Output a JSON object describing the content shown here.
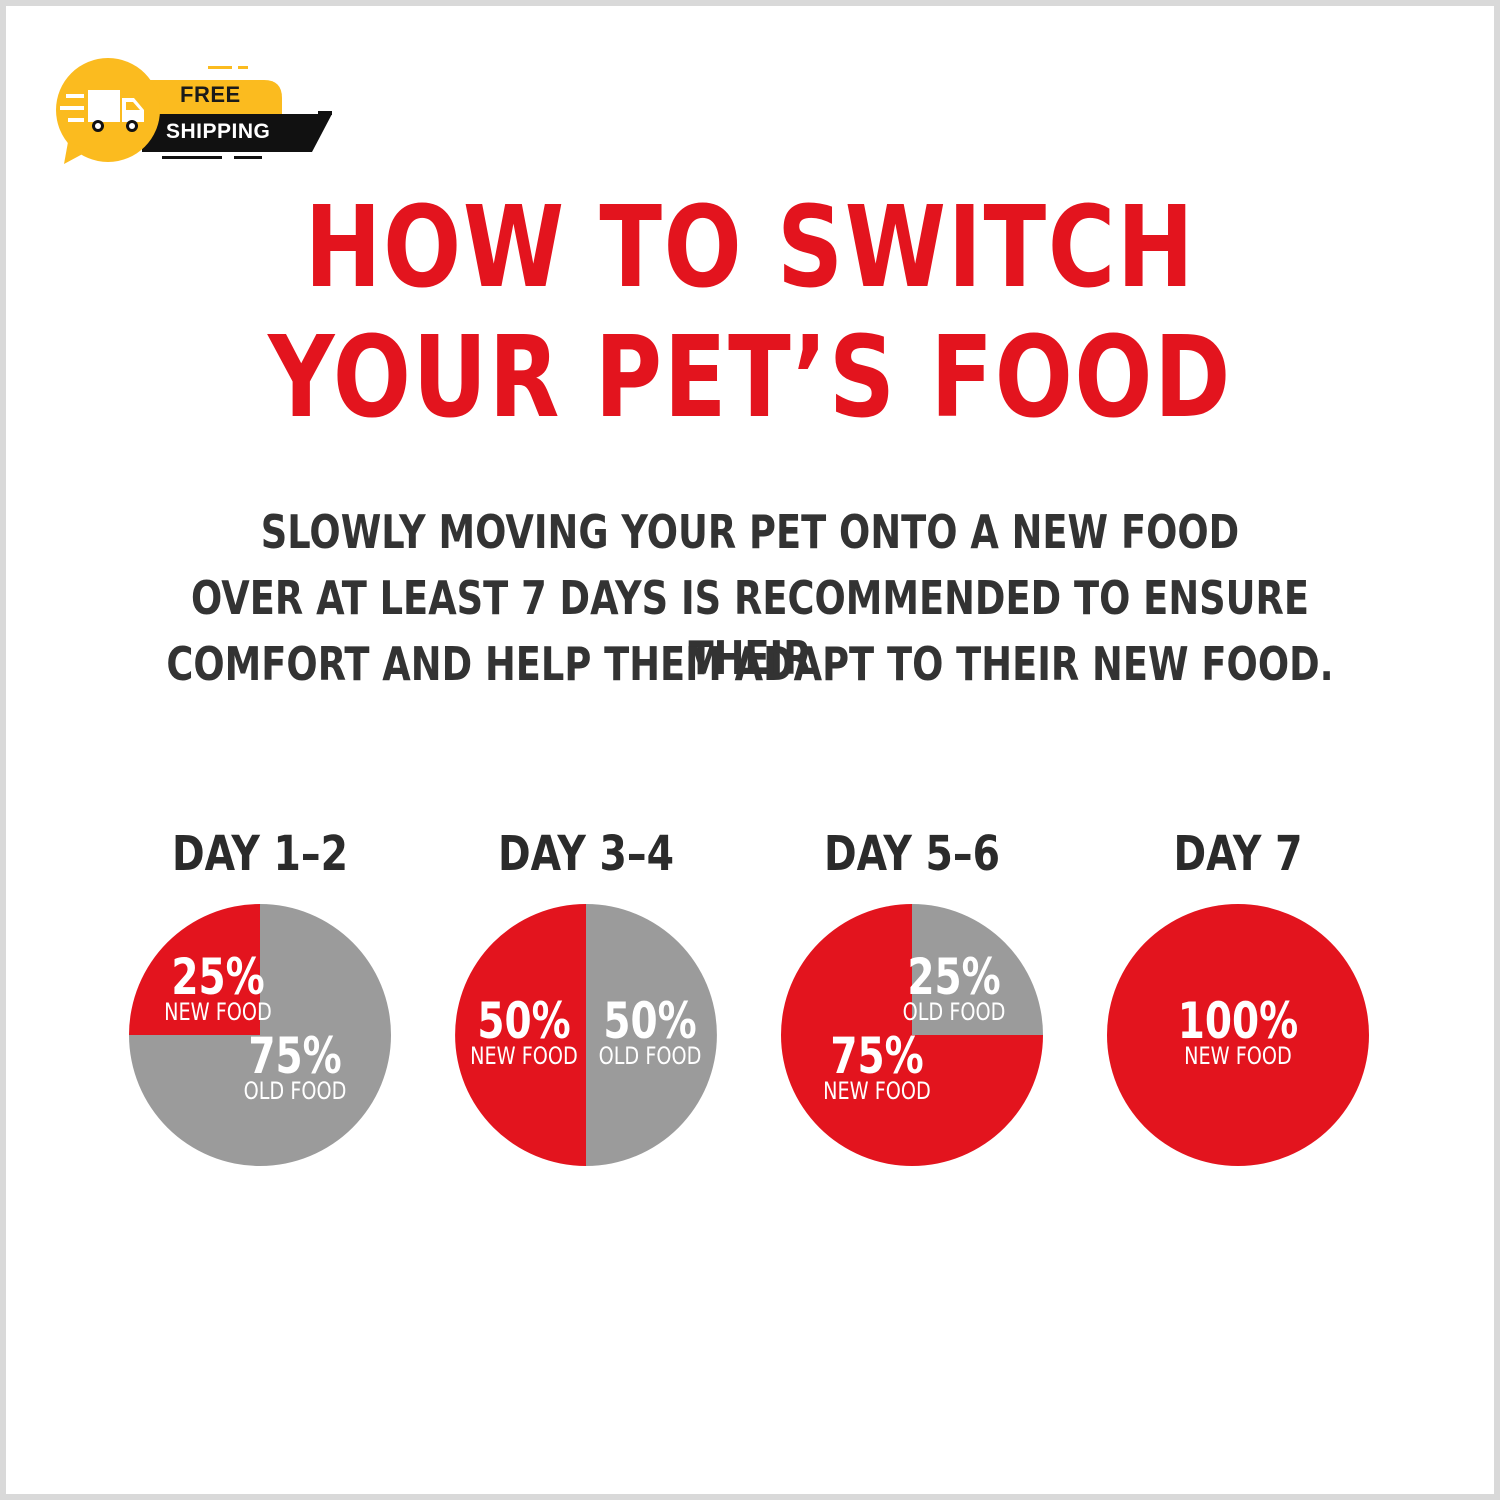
{
  "badge": {
    "line1": "FREE",
    "line2": "SHIPPING"
  },
  "header": {
    "line1": "HOW TO SWITCH",
    "line2": "YOUR PET’S FOOD"
  },
  "subtitle": {
    "line1": "SLOWLY MOVING YOUR PET ONTO A NEW FOOD",
    "line2": "OVER AT LEAST 7 DAYS IS RECOMMENDED TO ENSURE THEIR",
    "line3": "COMFORT AND HELP THEM ADAPT TO THEIR NEW FOOD."
  },
  "colors": {
    "new_food": "#e3141e",
    "old_food": "#9b9b9b",
    "badge_yellow": "#fbbb1f",
    "badge_black": "#111111"
  },
  "icons": [
    "delivery-truck-icon"
  ],
  "chart_data": {
    "type": "pie",
    "charts": [
      {
        "title": "DAY 1–2",
        "slices": [
          {
            "percent": 25,
            "value_label": "25%",
            "label": "NEW FOOD",
            "color": "#e3141e"
          },
          {
            "percent": 75,
            "value_label": "75%",
            "label": "OLD FOOD",
            "color": "#9b9b9b"
          }
        ]
      },
      {
        "title": "DAY 3–4",
        "slices": [
          {
            "percent": 50,
            "value_label": "50%",
            "label": "NEW FOOD",
            "color": "#e3141e"
          },
          {
            "percent": 50,
            "value_label": "50%",
            "label": "OLD FOOD",
            "color": "#9b9b9b"
          }
        ]
      },
      {
        "title": "DAY 5–6",
        "slices": [
          {
            "percent": 75,
            "value_label": "75%",
            "label": "NEW FOOD",
            "color": "#e3141e"
          },
          {
            "percent": 25,
            "value_label": "25%",
            "label": "OLD FOOD",
            "color": "#9b9b9b"
          }
        ]
      },
      {
        "title": "DAY 7",
        "slices": [
          {
            "percent": 100,
            "value_label": "100%",
            "label": "NEW FOOD",
            "color": "#e3141e"
          }
        ]
      }
    ]
  }
}
